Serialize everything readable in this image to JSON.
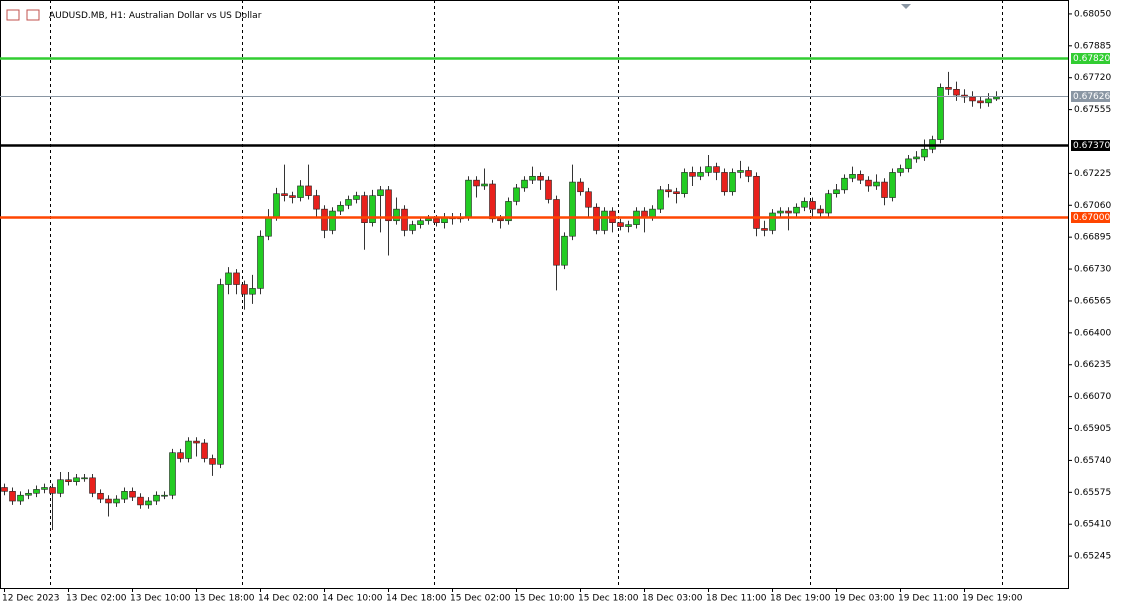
{
  "chart_data": {
    "type": "candlestick",
    "title": "AUDUSD.MB, H1:  Australian Dollar vs US Dollar",
    "categories": [
      "12 Dec 2023",
      null,
      null,
      null,
      null,
      null,
      null,
      null,
      "13 Dec 02:00",
      null,
      null,
      null,
      null,
      null,
      null,
      null,
      "13 Dec 10:00",
      null,
      null,
      null,
      null,
      null,
      null,
      null,
      "13 Dec 18:00",
      null,
      null,
      null,
      null,
      null,
      null,
      null,
      "14 Dec 02:00",
      null,
      null,
      null,
      null,
      null,
      null,
      null,
      "14 Dec 10:00",
      null,
      null,
      null,
      null,
      null,
      null,
      null,
      "14 Dec 18:00",
      null,
      null,
      null,
      null,
      null,
      null,
      null,
      "15 Dec 02:00",
      null,
      null,
      null,
      null,
      null,
      null,
      null,
      "15 Dec 10:00",
      null,
      null,
      null,
      null,
      null,
      null,
      null,
      "15 Dec 18:00",
      null,
      null,
      null,
      null,
      null,
      null,
      null,
      "18 Dec 03:00",
      null,
      null,
      null,
      null,
      null,
      null,
      null,
      "18 Dec 11:00",
      null,
      null,
      null,
      null,
      null,
      null,
      null,
      "18 Dec 19:00",
      null,
      null,
      null,
      null,
      null,
      null,
      null,
      "19 Dec 03:00",
      null,
      null,
      null,
      null,
      null,
      null,
      null,
      "19 Dec 11:00",
      null,
      null,
      null,
      null,
      null,
      null,
      null,
      "19 Dec 19:00",
      null,
      null,
      null,
      null
    ],
    "ohlc": [
      [
        0.656,
        0.6562,
        0.6556,
        0.6558
      ],
      [
        0.6558,
        0.656,
        0.6551,
        0.6553
      ],
      [
        0.6553,
        0.6558,
        0.6551,
        0.6556
      ],
      [
        0.6556,
        0.6559,
        0.6554,
        0.6557
      ],
      [
        0.6557,
        0.6561,
        0.6555,
        0.6559
      ],
      [
        0.6559,
        0.6562,
        0.6557,
        0.656
      ],
      [
        0.656,
        0.6562,
        0.6538,
        0.6557
      ],
      [
        0.6557,
        0.6568,
        0.6555,
        0.6564
      ],
      [
        0.6564,
        0.6568,
        0.6561,
        0.6563
      ],
      [
        0.6563,
        0.6567,
        0.6561,
        0.6565
      ],
      [
        0.6565,
        0.6567,
        0.6563,
        0.6565
      ],
      [
        0.6565,
        0.6567,
        0.6555,
        0.6557
      ],
      [
        0.6557,
        0.6559,
        0.6552,
        0.6554
      ],
      [
        0.6554,
        0.6556,
        0.6545,
        0.6552
      ],
      [
        0.6552,
        0.6556,
        0.655,
        0.6554
      ],
      [
        0.6554,
        0.656,
        0.6552,
        0.6558
      ],
      [
        0.6558,
        0.656,
        0.6553,
        0.6555
      ],
      [
        0.6555,
        0.6557,
        0.6549,
        0.6551
      ],
      [
        0.6551,
        0.6555,
        0.6549,
        0.6553
      ],
      [
        0.6553,
        0.6558,
        0.6551,
        0.6556
      ],
      [
        0.6556,
        0.6558,
        0.6554,
        0.6556
      ],
      [
        0.6556,
        0.658,
        0.6554,
        0.6578
      ],
      [
        0.6578,
        0.658,
        0.6573,
        0.6575
      ],
      [
        0.6575,
        0.6586,
        0.6573,
        0.6584
      ],
      [
        0.6584,
        0.6586,
        0.6576,
        0.6583
      ],
      [
        0.6583,
        0.6585,
        0.6573,
        0.6575
      ],
      [
        0.6575,
        0.6577,
        0.6566,
        0.6572
      ],
      [
        0.6572,
        0.6668,
        0.657,
        0.6665
      ],
      [
        0.6665,
        0.6674,
        0.666,
        0.6671
      ],
      [
        0.6671,
        0.6673,
        0.666,
        0.6665
      ],
      [
        0.6665,
        0.6667,
        0.6652,
        0.666
      ],
      [
        0.666,
        0.667,
        0.6655,
        0.6663
      ],
      [
        0.6663,
        0.6693,
        0.666,
        0.669
      ],
      [
        0.669,
        0.6704,
        0.6688,
        0.67
      ],
      [
        0.67,
        0.6715,
        0.6698,
        0.6712
      ],
      [
        0.6712,
        0.6727,
        0.6708,
        0.6711
      ],
      [
        0.6711,
        0.6713,
        0.6707,
        0.671
      ],
      [
        0.671,
        0.6719,
        0.6708,
        0.6716
      ],
      [
        0.6716,
        0.6727,
        0.6709,
        0.6711
      ],
      [
        0.6711,
        0.6714,
        0.67,
        0.6704
      ],
      [
        0.6704,
        0.6706,
        0.6689,
        0.6693
      ],
      [
        0.6693,
        0.6705,
        0.6691,
        0.6703
      ],
      [
        0.6703,
        0.6708,
        0.6701,
        0.6706
      ],
      [
        0.6706,
        0.6711,
        0.6704,
        0.6709
      ],
      [
        0.6709,
        0.6713,
        0.6707,
        0.6711
      ],
      [
        0.6711,
        0.6713,
        0.6683,
        0.6697
      ],
      [
        0.6697,
        0.6714,
        0.6695,
        0.6711
      ],
      [
        0.6711,
        0.6716,
        0.6692,
        0.6714
      ],
      [
        0.6714,
        0.6716,
        0.668,
        0.6698
      ],
      [
        0.6698,
        0.671,
        0.6696,
        0.6704
      ],
      [
        0.6704,
        0.6706,
        0.669,
        0.6693
      ],
      [
        0.6693,
        0.6698,
        0.6691,
        0.6696
      ],
      [
        0.6696,
        0.67,
        0.6694,
        0.6698
      ],
      [
        0.6698,
        0.6701,
        0.6696,
        0.6699
      ],
      [
        0.6699,
        0.6701,
        0.6695,
        0.6697
      ],
      [
        0.6697,
        0.6702,
        0.6694,
        0.67
      ],
      [
        0.67,
        0.6702,
        0.6696,
        0.6699
      ],
      [
        0.6699,
        0.6702,
        0.6697,
        0.67
      ],
      [
        0.67,
        0.6721,
        0.6698,
        0.6719
      ],
      [
        0.6719,
        0.6721,
        0.671,
        0.6716
      ],
      [
        0.6716,
        0.6725,
        0.6714,
        0.6717
      ],
      [
        0.6717,
        0.6719,
        0.6697,
        0.6699
      ],
      [
        0.6699,
        0.6701,
        0.6694,
        0.6698
      ],
      [
        0.6698,
        0.671,
        0.6696,
        0.6708
      ],
      [
        0.6708,
        0.6717,
        0.6706,
        0.6715
      ],
      [
        0.6715,
        0.6721,
        0.6713,
        0.6719
      ],
      [
        0.6719,
        0.6726,
        0.6717,
        0.6721
      ],
      [
        0.6721,
        0.6723,
        0.6714,
        0.6719
      ],
      [
        0.6719,
        0.6721,
        0.6707,
        0.6709
      ],
      [
        0.6709,
        0.6711,
        0.6662,
        0.6675
      ],
      [
        0.6675,
        0.6692,
        0.6673,
        0.669
      ],
      [
        0.669,
        0.6727,
        0.6688,
        0.6718
      ],
      [
        0.6718,
        0.672,
        0.6711,
        0.6713
      ],
      [
        0.6713,
        0.6715,
        0.67,
        0.6705
      ],
      [
        0.6705,
        0.6707,
        0.6691,
        0.6693
      ],
      [
        0.6693,
        0.6705,
        0.6691,
        0.6703
      ],
      [
        0.6703,
        0.6705,
        0.6692,
        0.6697
      ],
      [
        0.6697,
        0.6699,
        0.6693,
        0.6695
      ],
      [
        0.6695,
        0.6698,
        0.6692,
        0.6696
      ],
      [
        0.6696,
        0.6705,
        0.6694,
        0.6703
      ],
      [
        0.6703,
        0.6705,
        0.6692,
        0.67
      ],
      [
        0.67,
        0.6706,
        0.6698,
        0.6704
      ],
      [
        0.6704,
        0.6716,
        0.6702,
        0.6714
      ],
      [
        0.6714,
        0.6717,
        0.671,
        0.6713
      ],
      [
        0.6713,
        0.6715,
        0.6707,
        0.6712
      ],
      [
        0.6712,
        0.6725,
        0.671,
        0.6723
      ],
      [
        0.6723,
        0.6726,
        0.6716,
        0.6721
      ],
      [
        0.6721,
        0.6726,
        0.6719,
        0.6723
      ],
      [
        0.6723,
        0.6732,
        0.6721,
        0.6726
      ],
      [
        0.6726,
        0.6728,
        0.6719,
        0.6723
      ],
      [
        0.6723,
        0.6725,
        0.6711,
        0.6713
      ],
      [
        0.6713,
        0.6725,
        0.6711,
        0.6723
      ],
      [
        0.6723,
        0.6729,
        0.672,
        0.6724
      ],
      [
        0.6724,
        0.6726,
        0.6718,
        0.6721
      ],
      [
        0.6721,
        0.6723,
        0.669,
        0.6694
      ],
      [
        0.6694,
        0.6698,
        0.669,
        0.6693
      ],
      [
        0.6693,
        0.6704,
        0.6691,
        0.6702
      ],
      [
        0.6702,
        0.6705,
        0.67,
        0.6703
      ],
      [
        0.6703,
        0.6705,
        0.6693,
        0.6702
      ],
      [
        0.6702,
        0.6707,
        0.67,
        0.6705
      ],
      [
        0.6705,
        0.671,
        0.6703,
        0.6708
      ],
      [
        0.6708,
        0.671,
        0.67,
        0.6704
      ],
      [
        0.6704,
        0.6706,
        0.67,
        0.6702
      ],
      [
        0.6702,
        0.6714,
        0.67,
        0.6712
      ],
      [
        0.6712,
        0.6717,
        0.671,
        0.6714
      ],
      [
        0.6714,
        0.6722,
        0.6712,
        0.672
      ],
      [
        0.672,
        0.6726,
        0.6718,
        0.6722
      ],
      [
        0.6722,
        0.6724,
        0.6717,
        0.6719
      ],
      [
        0.6719,
        0.6721,
        0.6713,
        0.6716
      ],
      [
        0.6716,
        0.6722,
        0.6714,
        0.6718
      ],
      [
        0.6718,
        0.672,
        0.6706,
        0.671
      ],
      [
        0.671,
        0.6725,
        0.6708,
        0.6723
      ],
      [
        0.6723,
        0.6727,
        0.6721,
        0.6725
      ],
      [
        0.6725,
        0.6732,
        0.6723,
        0.673
      ],
      [
        0.673,
        0.6734,
        0.6728,
        0.6731
      ],
      [
        0.6731,
        0.674,
        0.6729,
        0.6735
      ],
      [
        0.6735,
        0.6742,
        0.6733,
        0.674
      ],
      [
        0.674,
        0.6769,
        0.6738,
        0.6767
      ],
      [
        0.6767,
        0.6775,
        0.6763,
        0.6766
      ],
      [
        0.6766,
        0.677,
        0.676,
        0.6763
      ],
      [
        0.6763,
        0.6766,
        0.6759,
        0.6762
      ],
      [
        0.6762,
        0.6765,
        0.6757,
        0.676
      ],
      [
        0.676,
        0.6762,
        0.6756,
        0.6759
      ],
      [
        0.6759,
        0.6764,
        0.6757,
        0.6761
      ],
      [
        0.6761,
        0.6765,
        0.676,
        0.6762
      ]
    ],
    "up_color": "#22cc22",
    "down_color": "#e8201c",
    "ylim": [
      0.6508,
      0.68122
    ],
    "yticks": [
      {
        "value": 0.6805,
        "label": "0.68050"
      },
      {
        "value": 0.67885,
        "label": "0.67885"
      },
      {
        "value": 0.6772,
        "label": "0.67720"
      },
      {
        "value": 0.67555,
        "label": "0.67555"
      },
      {
        "value": 0.67225,
        "label": "0.67225"
      },
      {
        "value": 0.6706,
        "label": "0.67060"
      },
      {
        "value": 0.66895,
        "label": "0.66895"
      },
      {
        "value": 0.6673,
        "label": "0.66730"
      },
      {
        "value": 0.66565,
        "label": "0.66565"
      },
      {
        "value": 0.664,
        "label": "0.66400"
      },
      {
        "value": 0.66235,
        "label": "0.66235"
      },
      {
        "value": 0.6607,
        "label": "0.66070"
      },
      {
        "value": 0.65905,
        "label": "0.65905"
      },
      {
        "value": 0.6574,
        "label": "0.65740"
      },
      {
        "value": 0.65575,
        "label": "0.65575"
      },
      {
        "value": 0.6541,
        "label": "0.65410"
      },
      {
        "value": 0.65245,
        "label": "0.65245"
      }
    ],
    "levels": [
      {
        "value": 0.6782,
        "label": "0.67820",
        "color": "#32cd32"
      },
      {
        "value": 0.67626,
        "label": "0.67626",
        "color": "#8a96a3"
      },
      {
        "value": 0.6737,
        "label": "0.67370",
        "color": "#000000"
      },
      {
        "value": 0.67,
        "label": "0.67000",
        "color": "#ff4500"
      }
    ]
  }
}
